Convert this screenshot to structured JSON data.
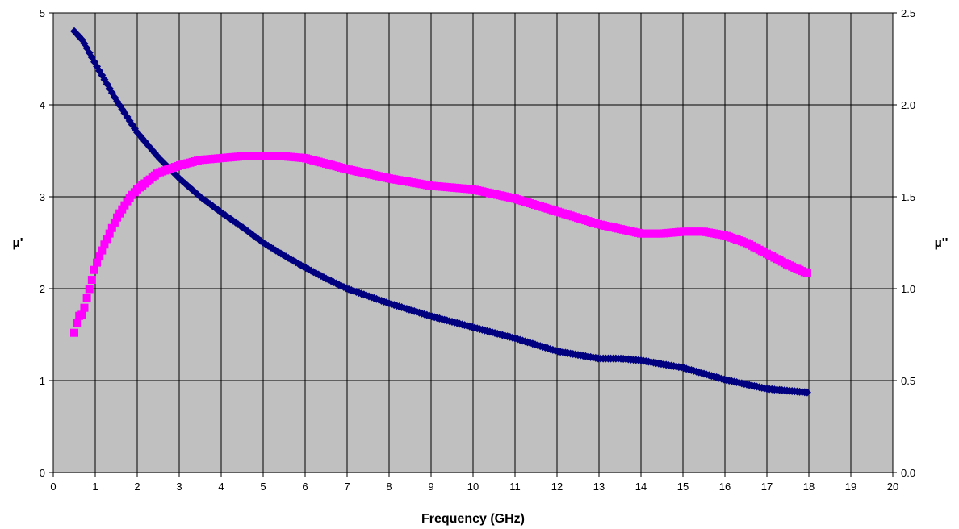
{
  "chart_data": {
    "type": "scatter",
    "xlabel": "Frequency (GHz)",
    "ylabel": "µ'",
    "y2label": "µ''",
    "xlim": [
      0,
      20
    ],
    "ylim": [
      0,
      5
    ],
    "y2lim": [
      0.0,
      2.5
    ],
    "x_ticks": [
      "0",
      "1",
      "2",
      "3",
      "4",
      "5",
      "6",
      "7",
      "8",
      "9",
      "10",
      "11",
      "12",
      "13",
      "14",
      "15",
      "16",
      "17",
      "18",
      "19",
      "20"
    ],
    "y_ticks": [
      "0",
      "1",
      "2",
      "3",
      "4",
      "5"
    ],
    "y2_ticks": [
      "0.0",
      "0.5",
      "1.0",
      "1.5",
      "2.0",
      "2.5"
    ],
    "grid": true,
    "plot_background": "#c0c0c0",
    "series": [
      {
        "axis": "left",
        "marker": "diamond",
        "color": "#000080",
        "x": [
          0.5,
          0.7,
          1.0,
          1.5,
          2.0,
          2.5,
          3.0,
          3.5,
          4.0,
          4.5,
          5.0,
          5.5,
          6.0,
          6.5,
          7.0,
          8.0,
          9.0,
          10.0,
          11.0,
          12.0,
          13.0,
          13.5,
          14.0,
          15.0,
          16.0,
          17.0,
          18.0
        ],
        "y": [
          4.8,
          4.7,
          4.45,
          4.05,
          3.7,
          3.43,
          3.2,
          3.0,
          2.83,
          2.67,
          2.5,
          2.36,
          2.23,
          2.11,
          2.0,
          1.84,
          1.7,
          1.58,
          1.46,
          1.32,
          1.24,
          1.24,
          1.22,
          1.14,
          1.01,
          0.91,
          0.87
        ]
      },
      {
        "axis": "right",
        "marker": "square",
        "color": "#ff00ff",
        "x": [
          0.5,
          0.6,
          0.7,
          0.8,
          0.9,
          1.0,
          1.2,
          1.5,
          1.8,
          2.0,
          2.5,
          3.0,
          3.5,
          4.0,
          4.5,
          5.0,
          5.5,
          6.0,
          6.5,
          7.0,
          8.0,
          9.0,
          10.0,
          11.0,
          12.0,
          13.0,
          14.0,
          14.5,
          15.0,
          15.5,
          16.0,
          16.5,
          17.0,
          17.5,
          18.0
        ],
        "y": [
          0.76,
          0.85,
          0.86,
          0.95,
          1.03,
          1.12,
          1.23,
          1.38,
          1.49,
          1.54,
          1.63,
          1.67,
          1.7,
          1.71,
          1.72,
          1.72,
          1.72,
          1.71,
          1.68,
          1.65,
          1.6,
          1.56,
          1.54,
          1.49,
          1.42,
          1.35,
          1.3,
          1.3,
          1.31,
          1.31,
          1.29,
          1.25,
          1.19,
          1.13,
          1.08
        ]
      }
    ]
  }
}
